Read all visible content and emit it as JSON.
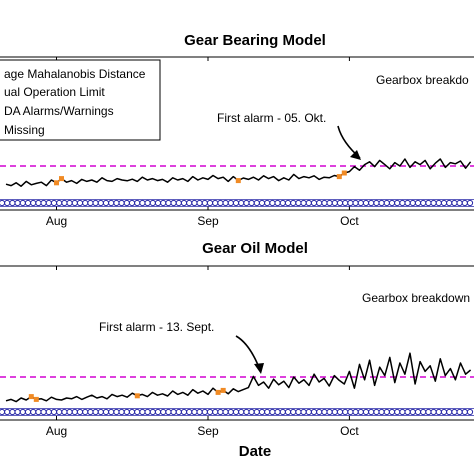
{
  "colors": {
    "distance_line": "#000000",
    "operation_limit": "#d200d2",
    "alarms_markers": "#2a2aa8",
    "missing_markers": "#f08a24"
  },
  "chart_data": [
    {
      "type": "line",
      "title": "Gear Bearing Model",
      "xlabel": "",
      "ylabel": "",
      "x_ticks": [
        "Aug",
        "Sep",
        "Oct"
      ],
      "grid": false,
      "legend": {
        "placement": "top-left",
        "entries": [
          "age Mahalanobis Distance",
          "ual Operation Limit",
          "DA Alarms/Warnings",
          " Missing"
        ]
      },
      "operation_limit": 1.0,
      "annotations": [
        {
          "text": "First alarm - 05. Okt.",
          "target_day": 69
        },
        {
          "text": "Gearbox breakdo"
        }
      ],
      "series": [
        {
          "name": "age Mahalanobis Distance",
          "x_days": [
            0,
            1,
            2,
            3,
            4,
            5,
            6,
            7,
            8,
            9,
            10,
            11,
            12,
            13,
            14,
            15,
            16,
            17,
            18,
            19,
            20,
            21,
            22,
            23,
            24,
            25,
            26,
            27,
            28,
            29,
            30,
            31,
            32,
            33,
            34,
            35,
            36,
            37,
            38,
            39,
            40,
            41,
            42,
            43,
            44,
            45,
            46,
            47,
            48,
            49,
            50,
            51,
            52,
            53,
            54,
            55,
            56,
            57,
            58,
            59,
            60,
            61,
            62,
            63,
            64,
            65,
            66,
            67,
            68,
            69,
            70,
            71,
            72,
            73,
            74,
            75,
            76,
            77,
            78,
            79,
            80,
            81,
            82,
            83,
            84,
            85,
            86,
            87,
            88,
            89,
            90,
            91,
            92
          ],
          "values": [
            0.35,
            0.3,
            0.4,
            0.28,
            0.45,
            0.33,
            0.38,
            0.42,
            0.3,
            0.5,
            0.4,
            0.55,
            0.42,
            0.48,
            0.38,
            0.52,
            0.45,
            0.5,
            0.42,
            0.58,
            0.48,
            0.45,
            0.55,
            0.5,
            0.47,
            0.53,
            0.45,
            0.6,
            0.5,
            0.55,
            0.48,
            0.52,
            0.42,
            0.58,
            0.5,
            0.55,
            0.45,
            0.62,
            0.5,
            0.58,
            0.52,
            0.66,
            0.55,
            0.6,
            0.45,
            0.62,
            0.48,
            0.57,
            0.52,
            0.6,
            0.5,
            0.65,
            0.55,
            0.62,
            0.48,
            0.58,
            0.5,
            0.7,
            0.55,
            0.62,
            0.58,
            0.65,
            0.52,
            0.6,
            0.58,
            0.66,
            0.62,
            0.75,
            0.8,
            0.98,
            0.85,
            1.05,
            1.15,
            0.98,
            1.2,
            1.05,
            0.9,
            1.12,
            1.0,
            1.25,
            0.95,
            1.15,
            1.05,
            1.2,
            0.9,
            1.1,
            1.25,
            0.95,
            1.12,
            1.08,
            1.18,
            0.92,
            1.15
          ]
        }
      ],
      "missing_days": [
        10,
        11,
        46,
        66,
        67
      ],
      "x_range_days": [
        0,
        92
      ],
      "y_range": [
        0,
        3.5
      ]
    },
    {
      "type": "line",
      "title": "Gear Oil Model",
      "xlabel": "Date",
      "ylabel": "",
      "x_ticks": [
        "Aug",
        "Sep",
        "Oct"
      ],
      "grid": false,
      "operation_limit": 1.0,
      "annotations": [
        {
          "text": "First alarm - 13. Sept.",
          "target_day": 49
        },
        {
          "text": "Gearbox breakdown"
        }
      ],
      "series": [
        {
          "name": "age Mahalanobis Distance",
          "x_days": [
            0,
            1,
            2,
            3,
            4,
            5,
            6,
            7,
            8,
            9,
            10,
            11,
            12,
            13,
            14,
            15,
            16,
            17,
            18,
            19,
            20,
            21,
            22,
            23,
            24,
            25,
            26,
            27,
            28,
            29,
            30,
            31,
            32,
            33,
            34,
            35,
            36,
            37,
            38,
            39,
            40,
            41,
            42,
            43,
            44,
            45,
            46,
            47,
            48,
            49,
            50,
            51,
            52,
            53,
            54,
            55,
            56,
            57,
            58,
            59,
            60,
            61,
            62,
            63,
            64,
            65,
            66,
            67,
            68,
            69,
            70,
            71,
            72,
            73,
            74,
            75,
            76,
            77,
            78,
            79,
            80,
            81,
            82,
            83,
            84,
            85,
            86,
            87,
            88,
            89,
            90,
            91,
            92
          ],
          "values": [
            0.15,
            0.2,
            0.12,
            0.25,
            0.18,
            0.3,
            0.2,
            0.22,
            0.15,
            0.28,
            0.2,
            0.18,
            0.25,
            0.22,
            0.3,
            0.2,
            0.28,
            0.35,
            0.25,
            0.3,
            0.22,
            0.38,
            0.3,
            0.35,
            0.28,
            0.42,
            0.33,
            0.38,
            0.3,
            0.45,
            0.35,
            0.4,
            0.32,
            0.5,
            0.38,
            0.45,
            0.35,
            0.55,
            0.42,
            0.5,
            0.38,
            0.6,
            0.45,
            0.52,
            0.4,
            0.58,
            0.48,
            0.55,
            0.62,
            1.02,
            0.7,
            0.82,
            0.6,
            0.92,
            0.72,
            0.85,
            0.62,
            1.0,
            0.78,
            0.9,
            0.7,
            1.1,
            0.82,
            0.95,
            0.68,
            1.05,
            0.88,
            0.75,
            1.2,
            0.6,
            1.45,
            0.9,
            1.6,
            0.7,
            1.35,
            1.05,
            1.7,
            0.8,
            1.5,
            1.1,
            1.85,
            0.75,
            1.55,
            1.2,
            1.4,
            0.85,
            1.65,
            1.05,
            1.3,
            0.9,
            1.5,
            1.1,
            1.25
          ]
        }
      ],
      "missing_days": [
        5,
        6,
        26,
        42,
        43
      ],
      "x_range_days": [
        0,
        92
      ],
      "y_range": [
        0,
        3.5
      ]
    }
  ]
}
